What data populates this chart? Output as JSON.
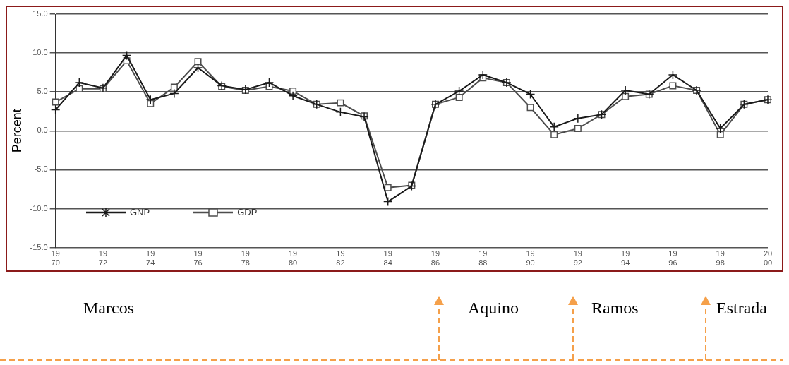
{
  "chart_data": {
    "type": "line",
    "ylabel": "Percent",
    "categories": [
      "19\n70",
      null,
      "19\n72",
      null,
      "19\n74",
      null,
      "19\n76",
      null,
      "19\n78",
      null,
      "19\n80",
      null,
      "19\n82",
      null,
      "19\n84",
      null,
      "19\n86",
      null,
      "19\n88",
      null,
      "19\n90",
      null,
      "19\n92",
      null,
      "19\n94",
      null,
      "19\n96",
      null,
      "19\n98",
      null,
      "20\n00"
    ],
    "series": [
      {
        "name": "GNP",
        "color": "#1a1a1a",
        "marker": "cross",
        "values": [
          2.7,
          6.2,
          5.5,
          9.7,
          4.0,
          4.8,
          8.1,
          5.8,
          5.3,
          6.2,
          4.5,
          3.4,
          2.4,
          1.8,
          -9.1,
          -7.1,
          3.4,
          5.1,
          7.2,
          6.2,
          4.7,
          0.5,
          1.6,
          2.1,
          5.2,
          4.7,
          7.2,
          5.2,
          0.3,
          3.4,
          4.0
        ]
      },
      {
        "name": "GDP",
        "color": "#4d4d4d",
        "marker": "square",
        "values": [
          3.7,
          5.4,
          5.4,
          9.0,
          3.5,
          5.6,
          8.9,
          5.7,
          5.2,
          5.7,
          5.1,
          3.4,
          3.6,
          1.9,
          -7.3,
          -7.0,
          3.4,
          4.3,
          6.8,
          6.2,
          3.0,
          -0.5,
          0.3,
          2.1,
          4.4,
          4.7,
          5.8,
          5.2,
          -0.5,
          3.4,
          4.0
        ]
      }
    ],
    "ylim": [
      -15,
      15
    ],
    "yticks": [
      {
        "value": -15,
        "label": "-15.0"
      },
      {
        "value": -10,
        "label": "-10.0"
      },
      {
        "value": -5,
        "label": "-5.0"
      },
      {
        "value": 0,
        "label": "0.0"
      },
      {
        "value": 5,
        "label": "5.0"
      },
      {
        "value": 10,
        "label": "10.0"
      },
      {
        "value": 15,
        "label": "15.0"
      }
    ],
    "grid": "y",
    "legend": "bottom left",
    "annotations": [
      "Marcos",
      "Aquino",
      "Ramos",
      "Estrada"
    ]
  }
}
